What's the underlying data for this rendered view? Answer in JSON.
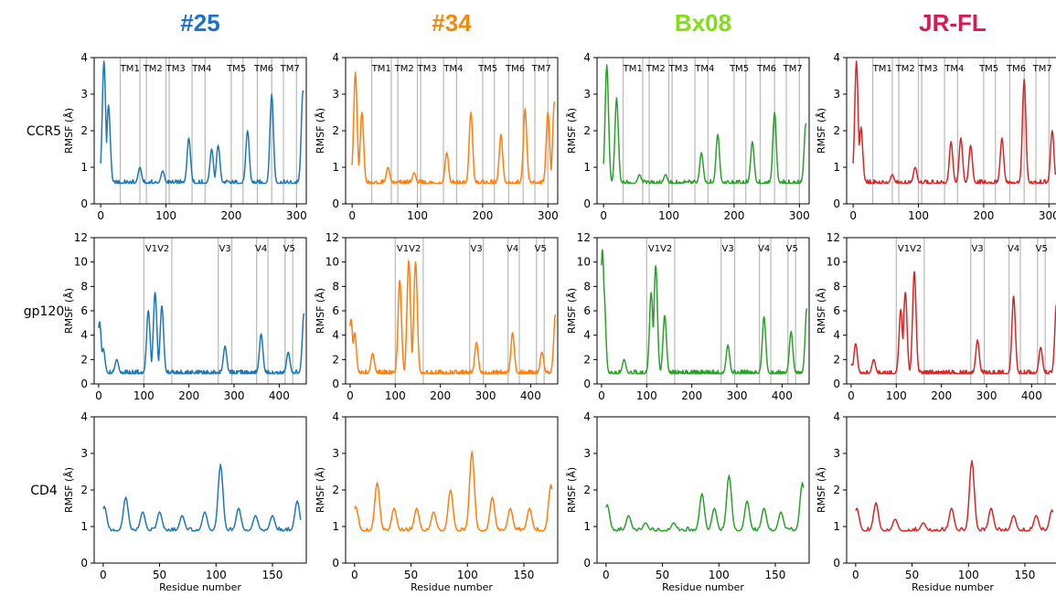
{
  "columns": [
    {
      "label": "#25",
      "color": "#1f77b4",
      "title_color": "#1a6fd0"
    },
    {
      "label": "#34",
      "color": "#ff7f0e",
      "title_color": "#f08a0c"
    },
    {
      "label": "Bx08",
      "color": "#2ca02c",
      "title_color": "#7ee011"
    },
    {
      "label": "JR-FL",
      "color": "#d62728",
      "title_color": "#dc1751"
    }
  ],
  "rows": [
    {
      "label": "CCR5",
      "ylabel": "RMSF (Å)"
    },
    {
      "label": "gp120",
      "ylabel": "RMSF (Å)"
    },
    {
      "label": "CD4",
      "ylabel": "RMSF (Å)"
    }
  ],
  "chart_data": [
    {
      "type": "line",
      "row": "CCR5",
      "xlim": [
        -10,
        315
      ],
      "ylim": [
        0,
        4
      ],
      "xticks": [
        0,
        100,
        200,
        300
      ],
      "yticks": [
        0,
        1,
        2,
        3,
        4
      ],
      "xlabel": "",
      "ylabel": "RMSF (Å)",
      "regions": [
        {
          "label": "TM1",
          "x": 45
        },
        {
          "label": "TM2",
          "x": 80
        },
        {
          "label": "TM3",
          "x": 115
        },
        {
          "label": "TM4",
          "x": 155
        },
        {
          "label": "TM5",
          "x": 208
        },
        {
          "label": "TM6",
          "x": 250
        },
        {
          "label": "TM7",
          "x": 290
        }
      ],
      "region_lines": [
        30,
        60,
        70,
        100,
        105,
        140,
        160,
        200,
        218,
        240,
        262,
        280,
        300
      ],
      "series": [
        {
          "column": "#25",
          "peaks": [
            [
              5,
              3.9
            ],
            [
              12,
              2.7
            ],
            [
              60,
              1.0
            ],
            [
              95,
              0.9
            ],
            [
              135,
              1.8
            ],
            [
              170,
              1.5
            ],
            [
              180,
              1.6
            ],
            [
              225,
              2.0
            ],
            [
              262,
              3.0
            ],
            [
              310,
              3.1
            ]
          ]
        },
        {
          "column": "#34",
          "peaks": [
            [
              5,
              3.6
            ],
            [
              15,
              2.5
            ],
            [
              55,
              1.0
            ],
            [
              95,
              0.85
            ],
            [
              145,
              1.4
            ],
            [
              182,
              2.5
            ],
            [
              228,
              1.9
            ],
            [
              265,
              2.6
            ],
            [
              300,
              2.5
            ],
            [
              310,
              2.8
            ]
          ]
        },
        {
          "column": "Bx08",
          "peaks": [
            [
              5,
              3.8
            ],
            [
              20,
              2.9
            ],
            [
              55,
              0.8
            ],
            [
              95,
              0.8
            ],
            [
              150,
              1.4
            ],
            [
              175,
              1.9
            ],
            [
              228,
              1.7
            ],
            [
              262,
              2.5
            ],
            [
              310,
              2.2
            ]
          ]
        },
        {
          "column": "JR-FL",
          "peaks": [
            [
              5,
              3.9
            ],
            [
              12,
              2.1
            ],
            [
              60,
              0.8
            ],
            [
              95,
              1.0
            ],
            [
              150,
              1.7
            ],
            [
              165,
              1.8
            ],
            [
              180,
              1.6
            ],
            [
              228,
              1.8
            ],
            [
              262,
              3.4
            ],
            [
              305,
              2.0
            ]
          ]
        }
      ]
    },
    {
      "type": "line",
      "row": "gp120",
      "xlim": [
        -10,
        460
      ],
      "ylim": [
        0,
        12
      ],
      "xticks": [
        0,
        100,
        200,
        300,
        400
      ],
      "yticks": [
        0,
        2,
        4,
        6,
        8,
        10,
        12
      ],
      "xlabel": "",
      "ylabel": "RMSF (Å)",
      "regions": [
        {
          "label": "V1V2",
          "x": 130
        },
        {
          "label": "V3",
          "x": 280
        },
        {
          "label": "V4",
          "x": 360
        },
        {
          "label": "V5",
          "x": 422
        }
      ],
      "region_lines": [
        100,
        162,
        265,
        295,
        350,
        375,
        413,
        430
      ],
      "series": [
        {
          "column": "#25",
          "peaks": [
            [
              2,
              5.1
            ],
            [
              10,
              2.9
            ],
            [
              40,
              2.0
            ],
            [
              110,
              6.0
            ],
            [
              125,
              7.5
            ],
            [
              140,
              6.4
            ],
            [
              280,
              3.1
            ],
            [
              360,
              4.1
            ],
            [
              420,
              2.6
            ],
            [
              455,
              5.8
            ]
          ]
        },
        {
          "column": "#34",
          "peaks": [
            [
              2,
              5.3
            ],
            [
              10,
              4.2
            ],
            [
              50,
              2.5
            ],
            [
              110,
              8.5
            ],
            [
              130,
              10.1
            ],
            [
              145,
              10.0
            ],
            [
              280,
              3.4
            ],
            [
              360,
              4.2
            ],
            [
              425,
              2.6
            ],
            [
              455,
              5.7
            ]
          ]
        },
        {
          "column": "Bx08",
          "peaks": [
            [
              2,
              11.0
            ],
            [
              5,
              7.8
            ],
            [
              50,
              2.0
            ],
            [
              110,
              7.5
            ],
            [
              120,
              9.7
            ],
            [
              140,
              5.6
            ],
            [
              280,
              3.2
            ],
            [
              360,
              5.5
            ],
            [
              420,
              4.3
            ],
            [
              455,
              6.2
            ]
          ]
        },
        {
          "column": "JR-FL",
          "peaks": [
            [
              2,
              1.6
            ],
            [
              10,
              3.3
            ],
            [
              50,
              2.0
            ],
            [
              110,
              6.1
            ],
            [
              120,
              7.5
            ],
            [
              140,
              9.2
            ],
            [
              280,
              3.6
            ],
            [
              360,
              7.2
            ],
            [
              420,
              3.0
            ],
            [
              455,
              6.5
            ]
          ]
        }
      ]
    },
    {
      "type": "line",
      "row": "CD4",
      "xlim": [
        -8,
        180
      ],
      "ylim": [
        0,
        4
      ],
      "xticks": [
        0,
        50,
        100,
        150
      ],
      "yticks": [
        0,
        1,
        2,
        3,
        4
      ],
      "xlabel": "Residue number",
      "ylabel": "RMSF (Å)",
      "regions": [],
      "region_lines": [],
      "series": [
        {
          "column": "#25",
          "peaks": [
            [
              1,
              1.55
            ],
            [
              20,
              1.8
            ],
            [
              35,
              1.4
            ],
            [
              50,
              1.4
            ],
            [
              70,
              1.3
            ],
            [
              90,
              1.4
            ],
            [
              104,
              2.7
            ],
            [
              120,
              1.5
            ],
            [
              135,
              1.3
            ],
            [
              150,
              1.3
            ],
            [
              172,
              1.7
            ]
          ]
        },
        {
          "column": "#34",
          "peaks": [
            [
              1,
              1.55
            ],
            [
              20,
              2.2
            ],
            [
              35,
              1.5
            ],
            [
              55,
              1.5
            ],
            [
              70,
              1.4
            ],
            [
              85,
              2.0
            ],
            [
              104,
              3.05
            ],
            [
              122,
              1.8
            ],
            [
              138,
              1.5
            ],
            [
              155,
              1.5
            ],
            [
              174,
              2.15
            ]
          ]
        },
        {
          "column": "Bx08",
          "peaks": [
            [
              1,
              1.6
            ],
            [
              20,
              1.3
            ],
            [
              35,
              1.1
            ],
            [
              60,
              1.1
            ],
            [
              85,
              1.9
            ],
            [
              96,
              1.5
            ],
            [
              109,
              2.4
            ],
            [
              125,
              1.7
            ],
            [
              140,
              1.5
            ],
            [
              155,
              1.4
            ],
            [
              174,
              2.2
            ]
          ]
        },
        {
          "column": "JR-FL",
          "peaks": [
            [
              1,
              1.5
            ],
            [
              18,
              1.65
            ],
            [
              35,
              1.2
            ],
            [
              60,
              1.1
            ],
            [
              85,
              1.5
            ],
            [
              103,
              2.8
            ],
            [
              120,
              1.5
            ],
            [
              140,
              1.3
            ],
            [
              160,
              1.3
            ],
            [
              174,
              1.45
            ]
          ]
        }
      ]
    }
  ]
}
